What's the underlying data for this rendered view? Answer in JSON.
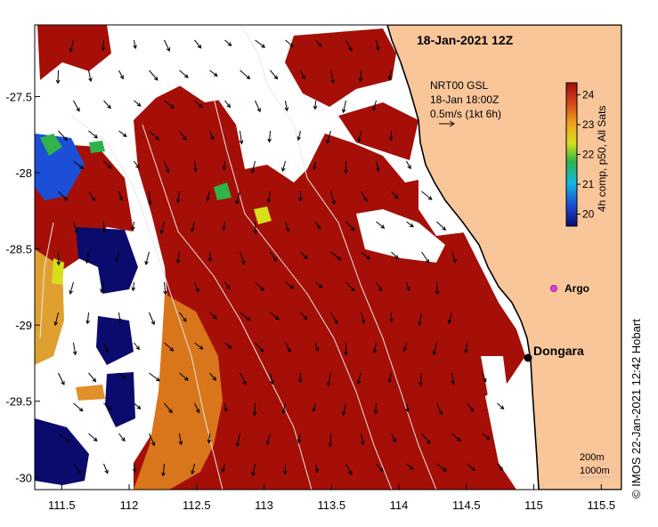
{
  "title": "18-Jan-2021 12Z",
  "current_info": {
    "line1": "NRT00 GSL",
    "line2": "18-Jan 18:00Z",
    "line3": "0.5m/s (1kt 6h)"
  },
  "colorbar": {
    "label": "4h comp, p50, All Sats",
    "ticks": [
      "20",
      "21",
      "22",
      "23",
      "24"
    ],
    "min": 19.6,
    "max": 24.4
  },
  "places": {
    "argo": "Argo",
    "dongara": "Dongara"
  },
  "depth_legend": {
    "shallow": "200m",
    "deep": "1000m"
  },
  "credit": "© IMOS 22-Jan-2021 12:42 Hobart",
  "axes": {
    "lon_ticks": [
      "111.5",
      "112",
      "112.5",
      "113",
      "113.5",
      "114",
      "114.5",
      "115",
      "115.5"
    ],
    "lat_ticks": [
      "-27.5",
      "-28",
      "-28.5",
      "-29",
      "-29.5",
      "-30"
    ],
    "lon_range": [
      111.3,
      115.65
    ],
    "lat_range": [
      -30.08,
      -27.03
    ]
  },
  "colors": {
    "land": "#f9c69a",
    "warm": "#a50f08",
    "orange": "#d9751a",
    "coast": "#000000"
  }
}
